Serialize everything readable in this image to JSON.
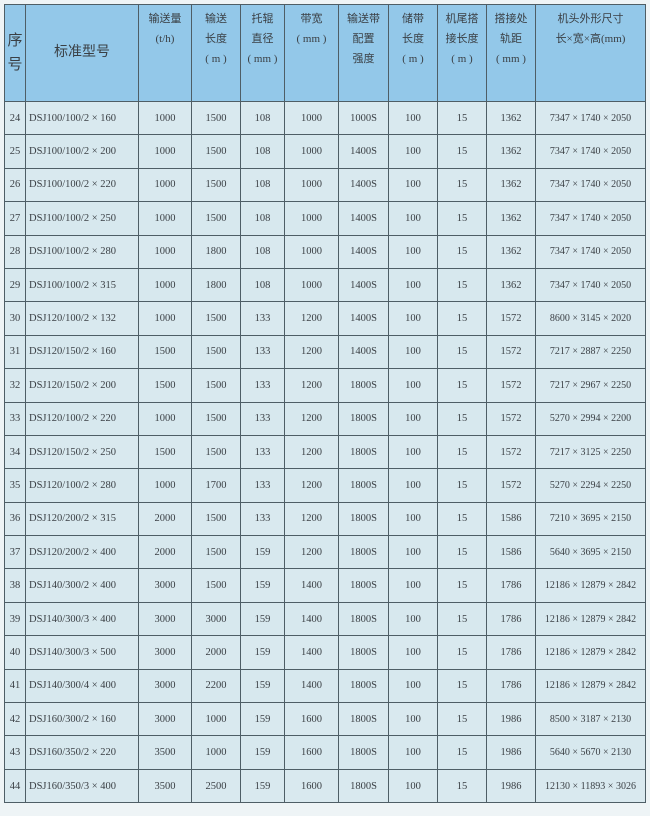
{
  "header": {
    "index": "序号",
    "model": "标准型号",
    "capacity": [
      "输送量",
      "(t/h)"
    ],
    "length": [
      "输送",
      "长度",
      "( m )"
    ],
    "roller": [
      "托辊",
      "直径",
      "( mm )"
    ],
    "belt_width": [
      "带宽",
      "( mm )"
    ],
    "belt_strength": [
      "输送带",
      "配置",
      "强度"
    ],
    "storage_length": [
      "储带",
      "长度",
      "( m )"
    ],
    "tail_overlap": [
      "机尾搭",
      "接长度",
      "( m )"
    ],
    "rail_gauge": [
      "搭接处",
      "轨距",
      "( mm )"
    ],
    "head_dims": [
      "机头外形尺寸",
      "长×宽×高(mm)"
    ]
  },
  "rows": [
    [
      "24",
      "DSJ100/100/2 × 160",
      "1000",
      "1500",
      "108",
      "1000",
      "1000S",
      "100",
      "15",
      "1362",
      "7347 × 1740 × 2050"
    ],
    [
      "25",
      "DSJ100/100/2 × 200",
      "1000",
      "1500",
      "108",
      "1000",
      "1400S",
      "100",
      "15",
      "1362",
      "7347 × 1740 × 2050"
    ],
    [
      "26",
      "DSJ100/100/2 × 220",
      "1000",
      "1500",
      "108",
      "1000",
      "1400S",
      "100",
      "15",
      "1362",
      "7347 × 1740 × 2050"
    ],
    [
      "27",
      "DSJ100/100/2 × 250",
      "1000",
      "1500",
      "108",
      "1000",
      "1400S",
      "100",
      "15",
      "1362",
      "7347 × 1740 × 2050"
    ],
    [
      "28",
      "DSJ100/100/2 × 280",
      "1000",
      "1800",
      "108",
      "1000",
      "1400S",
      "100",
      "15",
      "1362",
      "7347 × 1740 × 2050"
    ],
    [
      "29",
      "DSJ100/100/2 × 315",
      "1000",
      "1800",
      "108",
      "1000",
      "1400S",
      "100",
      "15",
      "1362",
      "7347 × 1740 × 2050"
    ],
    [
      "30",
      "DSJ120/100/2 × 132",
      "1000",
      "1500",
      "133",
      "1200",
      "1400S",
      "100",
      "15",
      "1572",
      "8600 × 3145 × 2020"
    ],
    [
      "31",
      "DSJ120/150/2 × 160",
      "1500",
      "1500",
      "133",
      "1200",
      "1400S",
      "100",
      "15",
      "1572",
      "7217 × 2887 × 2250"
    ],
    [
      "32",
      "DSJ120/150/2 × 200",
      "1500",
      "1500",
      "133",
      "1200",
      "1800S",
      "100",
      "15",
      "1572",
      "7217 × 2967 × 2250"
    ],
    [
      "33",
      "DSJ120/100/2 × 220",
      "1000",
      "1500",
      "133",
      "1200",
      "1800S",
      "100",
      "15",
      "1572",
      "5270 × 2994 × 2200"
    ],
    [
      "34",
      "DSJ120/150/2 × 250",
      "1500",
      "1500",
      "133",
      "1200",
      "1800S",
      "100",
      "15",
      "1572",
      "7217 × 3125 × 2250"
    ],
    [
      "35",
      "DSJ120/100/2 × 280",
      "1000",
      "1700",
      "133",
      "1200",
      "1800S",
      "100",
      "15",
      "1572",
      "5270 × 2294 × 2250"
    ],
    [
      "36",
      "DSJ120/200/2 × 315",
      "2000",
      "1500",
      "133",
      "1200",
      "1800S",
      "100",
      "15",
      "1586",
      "7210 × 3695 × 2150"
    ],
    [
      "37",
      "DSJ120/200/2 × 400",
      "2000",
      "1500",
      "159",
      "1200",
      "1800S",
      "100",
      "15",
      "1586",
      "5640 × 3695 × 2150"
    ],
    [
      "38",
      "DSJ140/300/2 × 400",
      "3000",
      "1500",
      "159",
      "1400",
      "1800S",
      "100",
      "15",
      "1786",
      "12186 × 12879 × 2842"
    ],
    [
      "39",
      "DSJ140/300/3 × 400",
      "3000",
      "3000",
      "159",
      "1400",
      "1800S",
      "100",
      "15",
      "1786",
      "12186 × 12879 × 2842"
    ],
    [
      "40",
      "DSJ140/300/3 × 500",
      "3000",
      "2000",
      "159",
      "1400",
      "1800S",
      "100",
      "15",
      "1786",
      "12186 × 12879 × 2842"
    ],
    [
      "41",
      "DSJ140/300/4 × 400",
      "3000",
      "2200",
      "159",
      "1400",
      "1800S",
      "100",
      "15",
      "1786",
      "12186 × 12879 × 2842"
    ],
    [
      "42",
      "DSJ160/300/2 × 160",
      "3000",
      "1000",
      "159",
      "1600",
      "1800S",
      "100",
      "15",
      "1986",
      "8500 × 3187 × 2130"
    ],
    [
      "43",
      "DSJ160/350/2 × 220",
      "3500",
      "1000",
      "159",
      "1600",
      "1800S",
      "100",
      "15",
      "1986",
      "5640 × 5670 × 2130"
    ],
    [
      "44",
      "DSJ160/350/3 × 400",
      "3500",
      "2500",
      "159",
      "1600",
      "1800S",
      "100",
      "15",
      "1986",
      "12130 × 11893 × 3026"
    ]
  ],
  "colors": {
    "header_bg": "#93c8e9",
    "body_bg": "#d7e8ee",
    "border": "#4e5e66"
  }
}
